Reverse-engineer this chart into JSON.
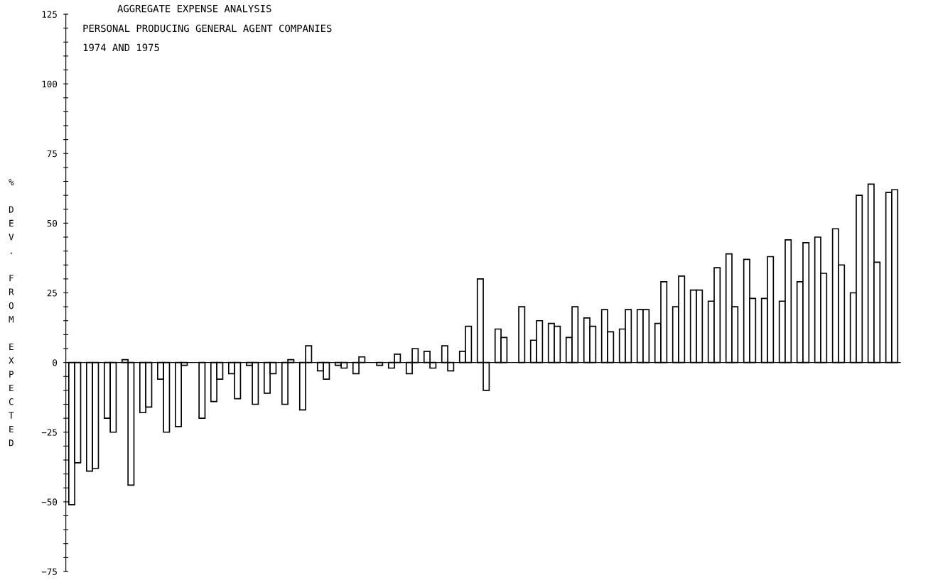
{
  "chart_data": {
    "type": "bar",
    "title": "AGGREGATE EXPENSE ANALYSIS",
    "subtitle": "PERSONAL PRODUCING GENERAL AGENT COMPANIES",
    "annotations": [
      "1974 AND 1975"
    ],
    "ylabel": "% DEV. FROM EXPECTED",
    "categories": [
      null,
      null,
      null,
      null,
      null,
      null,
      null,
      null,
      null,
      null,
      null,
      null,
      null,
      null,
      null,
      null,
      null,
      null,
      null,
      null,
      null,
      null,
      null,
      null,
      null,
      null,
      null,
      null,
      null,
      null,
      null,
      null,
      null,
      null,
      null,
      null,
      null,
      null,
      null,
      null,
      null,
      null,
      null,
      null,
      null,
      null,
      null
    ],
    "series": [
      {
        "color": "#ffffff",
        "values": [
          -51,
          -39,
          -20,
          1,
          -18,
          -6,
          -23,
          null,
          -14,
          -4,
          -1,
          -11,
          -15,
          -17,
          -3,
          -1,
          -4,
          null,
          -2,
          -4,
          4,
          6,
          4,
          30,
          12,
          null,
          8,
          14,
          9,
          16,
          19,
          12,
          19,
          14,
          20,
          26,
          22,
          39,
          37,
          23,
          22,
          29,
          45,
          48,
          25,
          64,
          61
        ]
      },
      {
        "color": "#ffffff",
        "values": [
          -36,
          -38,
          -25,
          -44,
          -16,
          -25,
          -1,
          -20,
          -6,
          -13,
          -15,
          -4,
          1,
          6,
          -6,
          -2,
          2,
          -1,
          3,
          5,
          -2,
          -3,
          13,
          -10,
          9,
          20,
          15,
          13,
          20,
          13,
          11,
          19,
          19,
          29,
          31,
          26,
          34,
          20,
          23,
          38,
          44,
          43,
          32,
          35,
          60,
          36,
          62
        ]
      }
    ],
    "ylim": [
      -75,
      125
    ],
    "yticks": [
      {
        "value": -75,
        "label": "−75"
      },
      {
        "value": -70,
        "label": null
      },
      {
        "value": -65,
        "label": null
      },
      {
        "value": -60,
        "label": null
      },
      {
        "value": -55,
        "label": null
      },
      {
        "value": -50,
        "label": "−50"
      },
      {
        "value": -45,
        "label": null
      },
      {
        "value": -40,
        "label": null
      },
      {
        "value": -35,
        "label": null
      },
      {
        "value": -30,
        "label": null
      },
      {
        "value": -25,
        "label": "−25"
      },
      {
        "value": -20,
        "label": null
      },
      {
        "value": -15,
        "label": null
      },
      {
        "value": -10,
        "label": null
      },
      {
        "value": -5,
        "label": null
      },
      0,
      {
        "value": 5,
        "label": null
      },
      {
        "value": 10,
        "label": null
      },
      {
        "value": 15,
        "label": null
      },
      {
        "value": 20,
        "label": null
      },
      25,
      {
        "value": 30,
        "label": null
      },
      {
        "value": 35,
        "label": null
      },
      {
        "value": 40,
        "label": null
      },
      {
        "value": 45,
        "label": null
      },
      50,
      {
        "value": 55,
        "label": null
      },
      {
        "value": 60,
        "label": null
      },
      {
        "value": 65,
        "label": null
      },
      {
        "value": 70,
        "label": null
      },
      75,
      {
        "value": 80,
        "label": null
      },
      {
        "value": 85,
        "label": null
      },
      {
        "value": 90,
        "label": null
      },
      {
        "value": 95,
        "label": null
      },
      100,
      {
        "value": 105,
        "label": null
      },
      {
        "value": 110,
        "label": null
      },
      {
        "value": 115,
        "label": null
      },
      {
        "value": 120,
        "label": null
      },
      125
    ],
    "relative": false
  }
}
